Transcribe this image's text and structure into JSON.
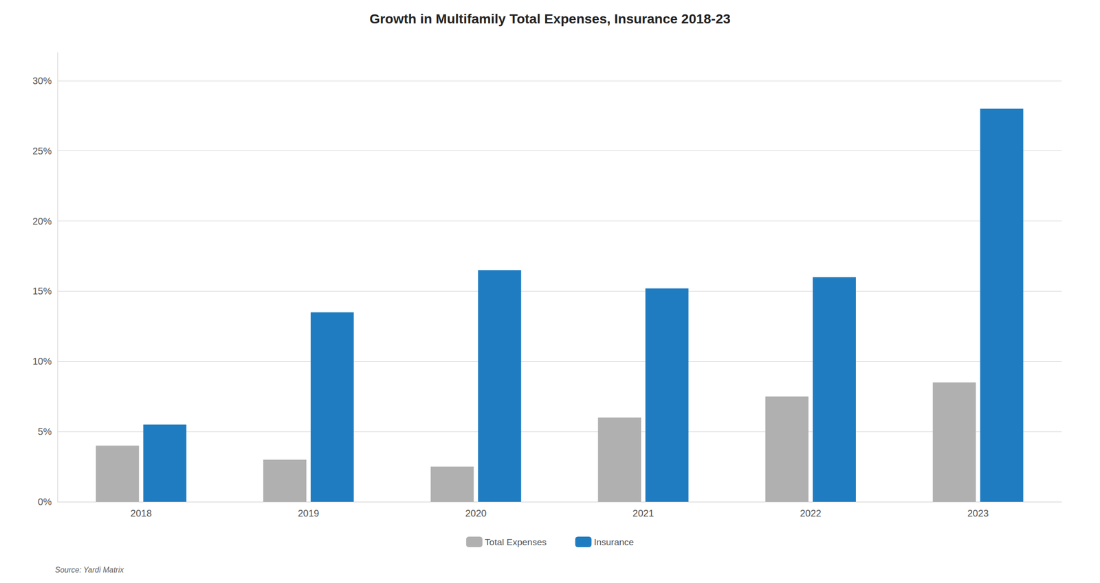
{
  "chart_data": {
    "type": "bar",
    "title": "Growth in Multifamily Total Expenses, Insurance 2018-23",
    "categories": [
      "2018",
      "2019",
      "2020",
      "2021",
      "2022",
      "2023"
    ],
    "series": [
      {
        "name": "Total Expenses",
        "color": "#B0B0B0",
        "values": [
          0.04,
          0.03,
          0.025,
          0.06,
          0.075,
          0.085
        ]
      },
      {
        "name": "Insurance",
        "color": "#1F7CC1",
        "values": [
          0.055,
          0.135,
          0.165,
          0.152,
          0.16,
          0.28
        ]
      }
    ],
    "ylim": [
      0,
      0.32
    ],
    "yticks": [
      {
        "value": 0.0,
        "label": "0%"
      },
      {
        "value": 0.05,
        "label": "5%"
      },
      {
        "value": 0.1,
        "label": "10%"
      },
      {
        "value": 0.15,
        "label": "15%"
      },
      {
        "value": 0.2,
        "label": "20%"
      },
      {
        "value": 0.25,
        "label": "25%"
      },
      {
        "value": 0.3,
        "label": "30%"
      }
    ],
    "grid": true,
    "legend": "bottom",
    "annotations": [
      "Source: Yardi Matrix"
    ]
  }
}
